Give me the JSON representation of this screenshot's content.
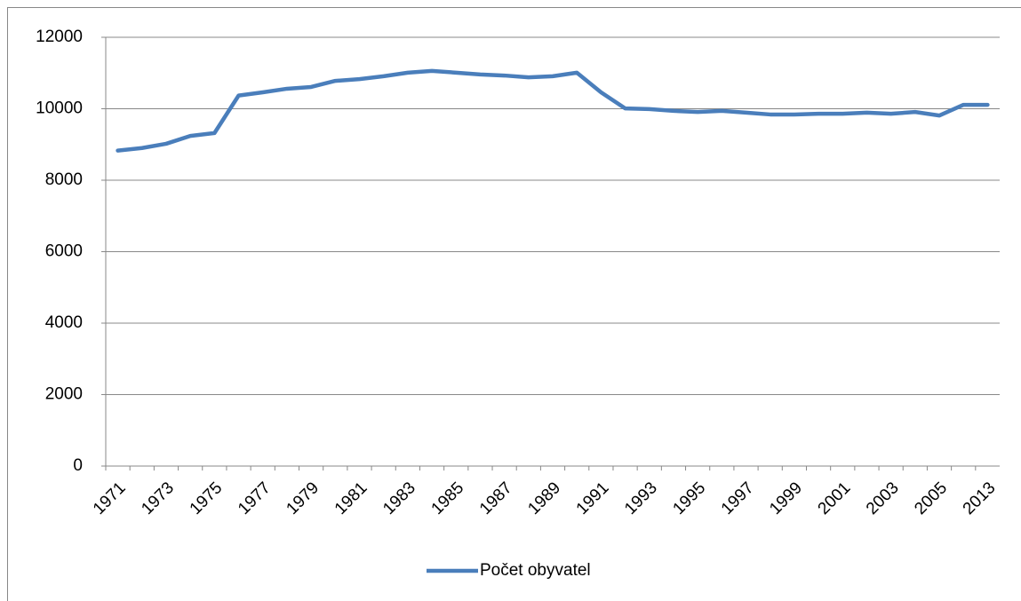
{
  "chart_data": {
    "type": "line",
    "categories": [
      "1971",
      null,
      "1973",
      null,
      "1975",
      null,
      "1977",
      null,
      "1979",
      null,
      "1981",
      null,
      "1983",
      null,
      "1985",
      null,
      "1987",
      null,
      "1989",
      null,
      "1991",
      null,
      "1993",
      null,
      "1995",
      null,
      "1997",
      null,
      "1999",
      null,
      "2001",
      null,
      "2003",
      null,
      "2005",
      null,
      "2013"
    ],
    "series": [
      {
        "name": "Počet obyvatel",
        "color": "#4a7ebb",
        "values": [
          8830,
          8900,
          9020,
          9240,
          9320,
          10370,
          10460,
          10560,
          10610,
          10780,
          10830,
          10910,
          11010,
          11060,
          11010,
          10960,
          10930,
          10880,
          10910,
          11010,
          10460,
          10010,
          9990,
          9940,
          9910,
          9940,
          9890,
          9840,
          9840,
          9860,
          9860,
          9890,
          9860,
          9910,
          9810,
          10110,
          10110
        ]
      }
    ],
    "ylim": [
      0,
      12000
    ],
    "yticks": [
      0,
      2000,
      4000,
      6000,
      8000,
      10000,
      12000
    ],
    "grid": true,
    "legend": "bottom"
  }
}
